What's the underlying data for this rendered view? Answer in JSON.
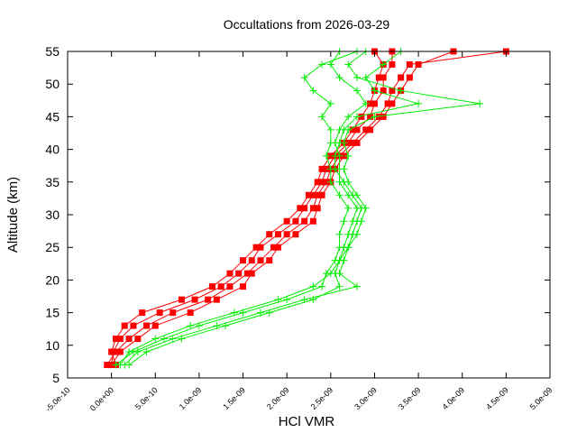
{
  "chart_data": {
    "type": "line",
    "title": "Occultations from 2026-03-29",
    "xlabel": "HCl VMR",
    "ylabel": "Altitude (km)",
    "xlim": [
      -5e-10,
      5e-09
    ],
    "ylim": [
      5,
      55
    ],
    "xticks": [
      "-5.0e-10",
      "0.0e+00",
      "5.0e-10",
      "1.0e-09",
      "1.5e-09",
      "2.0e-09",
      "2.5e-09",
      "3.0e-09",
      "3.5e-09",
      "4.0e-09",
      "4.5e-09",
      "5.0e-09"
    ],
    "yticks": [
      "5",
      "10",
      "15",
      "20",
      "25",
      "30",
      "35",
      "40",
      "45",
      "50",
      "55"
    ],
    "grid": false,
    "legend": "none",
    "altitudes": [
      7,
      9,
      11,
      13,
      15,
      17,
      19,
      21,
      23,
      25,
      27,
      29,
      31,
      33,
      35,
      37,
      39,
      41,
      43,
      45,
      47,
      49,
      51,
      53,
      55
    ],
    "series": [
      {
        "color": "#ff0000",
        "marker": "square",
        "profiles": [
          [
            0.0,
            2e-11,
            1e-10,
            2.5e-10,
            5.5e-10,
            9.5e-10,
            1.25e-09,
            1.45e-09,
            1.6e-09,
            1.7e-09,
            1.9e-09,
            2.1e-09,
            2.2e-09,
            2.3e-09,
            2.4e-09,
            2.45e-09,
            2.55e-09,
            2.7e-09,
            2.8e-09,
            2.95e-09,
            3e-09,
            3.1e-09,
            3.1e-09,
            3.2e-09,
            3.2e-09
          ],
          [
            -5e-11,
            5e-11,
            2e-10,
            4e-10,
            7e-10,
            1.1e-09,
            1.35e-09,
            1.55e-09,
            1.7e-09,
            1.85e-09,
            2e-09,
            2.2e-09,
            2.3e-09,
            2.35e-09,
            2.45e-09,
            2.5e-09,
            2.6e-09,
            2.75e-09,
            2.9e-09,
            3.05e-09,
            3.15e-09,
            3.2e-09,
            3.3e-09,
            3.4e-09,
            4.5e-09
          ],
          [
            5e-11,
            0.0,
            5e-11,
            1.5e-10,
            3.5e-10,
            8e-10,
            1.15e-09,
            1.35e-09,
            1.5e-09,
            1.65e-09,
            1.8e-09,
            2e-09,
            2.15e-09,
            2.25e-09,
            2.35e-09,
            2.4e-09,
            2.5e-09,
            2.65e-09,
            2.75e-09,
            2.85e-09,
            2.95e-09,
            3e-09,
            3.05e-09,
            3.1e-09,
            3e-09
          ],
          [
            0.0,
            1e-10,
            3e-10,
            5e-10,
            9e-10,
            1.2e-09,
            1.5e-09,
            1.6e-09,
            1.8e-09,
            1.9e-09,
            2.1e-09,
            2.3e-09,
            2.35e-09,
            2.4e-09,
            2.5e-09,
            2.55e-09,
            2.65e-09,
            2.8e-09,
            2.95e-09,
            3.1e-09,
            3.2e-09,
            3.3e-09,
            3.4e-09,
            3.5e-09,
            3.9e-09
          ]
        ]
      },
      {
        "color": "#00ee00",
        "marker": "plus",
        "profiles": [
          [
            1e-10,
            2e-10,
            5e-10,
            9e-10,
            1.4e-09,
            1.9e-09,
            2.3e-09,
            2.5e-09,
            2.6e-09,
            2.65e-09,
            2.7e-09,
            2.75e-09,
            2.8e-09,
            2.7e-09,
            2.6e-09,
            2.6e-09,
            2.6e-09,
            2.55e-09,
            2.6e-09,
            2.7e-09,
            2.9e-09,
            2.8e-09,
            2.6e-09,
            2.5e-09,
            2.6e-09
          ],
          [
            1.5e-10,
            3e-10,
            7e-10,
            1.2e-09,
            1.7e-09,
            2.2e-09,
            2.8e-09,
            2.6e-09,
            2.65e-09,
            2.7e-09,
            2.8e-09,
            2.85e-09,
            2.9e-09,
            2.8e-09,
            2.7e-09,
            2.65e-09,
            2.7e-09,
            2.65e-09,
            2.7e-09,
            3e-09,
            4.2e-09,
            3.3e-09,
            2.8e-09,
            2.7e-09,
            2.9e-09
          ],
          [
            5e-11,
            2.5e-10,
            6e-10,
            1e-09,
            1.5e-09,
            2e-09,
            2.4e-09,
            2.45e-09,
            2.55e-09,
            2.6e-09,
            2.6e-09,
            2.65e-09,
            2.7e-09,
            2.6e-09,
            2.5e-09,
            2.5e-09,
            2.45e-09,
            2.5e-09,
            2.5e-09,
            2.4e-09,
            2.5e-09,
            2.3e-09,
            2.2e-09,
            2.4e-09,
            2.8e-09
          ],
          [
            2e-10,
            4e-10,
            8e-10,
            1.3e-09,
            1.8e-09,
            2.3e-09,
            2.6e-09,
            2.55e-09,
            2.6e-09,
            2.7e-09,
            2.75e-09,
            2.8e-09,
            2.85e-09,
            2.75e-09,
            2.65e-09,
            2.55e-09,
            2.55e-09,
            2.6e-09,
            2.65e-09,
            2.8e-09,
            3.5e-09,
            3e-09,
            2.9e-09,
            3.1e-09,
            3.3e-09
          ]
        ]
      }
    ]
  }
}
